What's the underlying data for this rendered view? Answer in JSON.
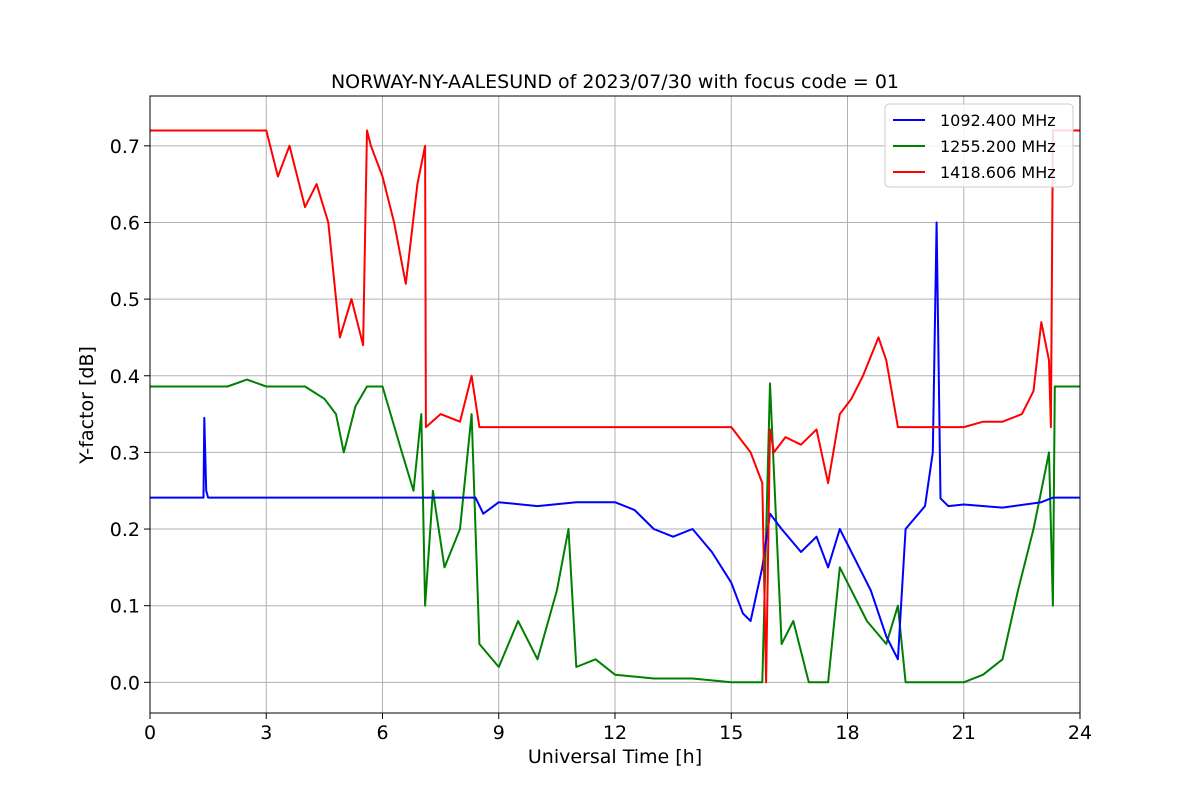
{
  "chart_data": {
    "type": "line",
    "title": "NORWAY-NY-AALESUND of 2023/07/30 with focus code = 01",
    "xlabel": "Universal Time [h]",
    "ylabel": "Y-factor [dB]",
    "xlim": [
      0,
      24
    ],
    "ylim": [
      -0.04,
      0.765
    ],
    "xticks": [
      0,
      3,
      6,
      9,
      12,
      15,
      18,
      21,
      24
    ],
    "yticks": [
      0.0,
      0.1,
      0.2,
      0.3,
      0.4,
      0.5,
      0.6,
      0.7
    ],
    "grid": true,
    "legend_position": "top-right",
    "series": [
      {
        "name": "1092.400 MHz",
        "color": "#0000ff",
        "x": [
          0,
          1.38,
          1.4,
          1.45,
          1.5,
          7.1,
          8.4,
          8.6,
          9.0,
          10.0,
          11.0,
          12.0,
          12.5,
          13.0,
          13.5,
          14.0,
          14.5,
          15.0,
          15.3,
          15.5,
          15.8,
          16.0,
          16.3,
          16.8,
          17.2,
          17.5,
          17.8,
          18.2,
          18.6,
          19.0,
          19.3,
          19.5,
          20.0,
          20.2,
          20.3,
          20.4,
          20.6,
          21.0,
          22.0,
          23.0,
          23.3,
          24.0
        ],
        "y": [
          0.241,
          0.241,
          0.345,
          0.25,
          0.241,
          0.241,
          0.241,
          0.22,
          0.235,
          0.23,
          0.235,
          0.235,
          0.225,
          0.2,
          0.19,
          0.2,
          0.17,
          0.13,
          0.09,
          0.08,
          0.15,
          0.22,
          0.2,
          0.17,
          0.19,
          0.15,
          0.2,
          0.16,
          0.12,
          0.06,
          0.03,
          0.2,
          0.23,
          0.3,
          0.6,
          0.24,
          0.23,
          0.232,
          0.228,
          0.235,
          0.241,
          0.241
        ]
      },
      {
        "name": "1255.200 MHz",
        "color": "#008000",
        "x": [
          0,
          2.0,
          2.5,
          3.0,
          4.0,
          4.5,
          4.8,
          5.0,
          5.3,
          5.6,
          6.0,
          6.5,
          6.8,
          7.0,
          7.1,
          7.3,
          7.6,
          8.0,
          8.3,
          8.5,
          9.0,
          9.5,
          10.0,
          10.5,
          10.8,
          11.0,
          11.5,
          12.0,
          13.0,
          14.0,
          15.0,
          15.8,
          16.0,
          16.3,
          16.6,
          17.0,
          17.5,
          17.8,
          18.0,
          18.5,
          19.0,
          19.3,
          19.5,
          20.0,
          21.0,
          21.5,
          22.0,
          22.4,
          22.8,
          23.0,
          23.2,
          23.3,
          23.35,
          24.0
        ],
        "y": [
          0.386,
          0.386,
          0.395,
          0.386,
          0.386,
          0.37,
          0.35,
          0.3,
          0.36,
          0.386,
          0.386,
          0.3,
          0.25,
          0.35,
          0.1,
          0.25,
          0.15,
          0.2,
          0.35,
          0.05,
          0.02,
          0.08,
          0.03,
          0.12,
          0.2,
          0.02,
          0.03,
          0.01,
          0.005,
          0.005,
          0.0,
          0.0,
          0.39,
          0.05,
          0.08,
          0.0,
          0.0,
          0.15,
          0.13,
          0.08,
          0.05,
          0.1,
          0.0,
          0.0,
          0.0,
          0.01,
          0.03,
          0.12,
          0.2,
          0.25,
          0.3,
          0.1,
          0.386,
          0.386
        ]
      },
      {
        "name": "1418.606 MHz",
        "color": "#ff0000",
        "x": [
          0,
          1.0,
          2.0,
          3.0,
          3.3,
          3.6,
          4.0,
          4.3,
          4.6,
          4.9,
          5.2,
          5.5,
          5.6,
          5.7,
          6.0,
          6.3,
          6.6,
          6.9,
          7.1,
          7.12,
          7.5,
          8.0,
          8.3,
          8.5,
          9.0,
          10.0,
          11.0,
          12.0,
          13.0,
          14.0,
          15.0,
          15.5,
          15.8,
          15.9,
          16.0,
          16.1,
          16.4,
          16.8,
          17.2,
          17.5,
          17.8,
          18.1,
          18.4,
          18.8,
          19.0,
          19.3,
          19.4,
          20.0,
          20.5,
          21.0,
          21.5,
          22.0,
          22.5,
          22.8,
          23.0,
          23.2,
          23.25,
          23.3,
          23.4,
          24.0
        ],
        "y": [
          0.72,
          0.72,
          0.72,
          0.72,
          0.66,
          0.7,
          0.62,
          0.65,
          0.6,
          0.45,
          0.5,
          0.44,
          0.72,
          0.7,
          0.66,
          0.6,
          0.52,
          0.65,
          0.7,
          0.333,
          0.35,
          0.34,
          0.4,
          0.333,
          0.333,
          0.333,
          0.333,
          0.333,
          0.333,
          0.333,
          0.333,
          0.3,
          0.26,
          0.0,
          0.33,
          0.3,
          0.32,
          0.31,
          0.33,
          0.26,
          0.35,
          0.37,
          0.4,
          0.45,
          0.42,
          0.333,
          0.333,
          0.333,
          0.333,
          0.333,
          0.34,
          0.34,
          0.35,
          0.38,
          0.47,
          0.42,
          0.333,
          0.72,
          0.72,
          0.72
        ]
      }
    ]
  }
}
